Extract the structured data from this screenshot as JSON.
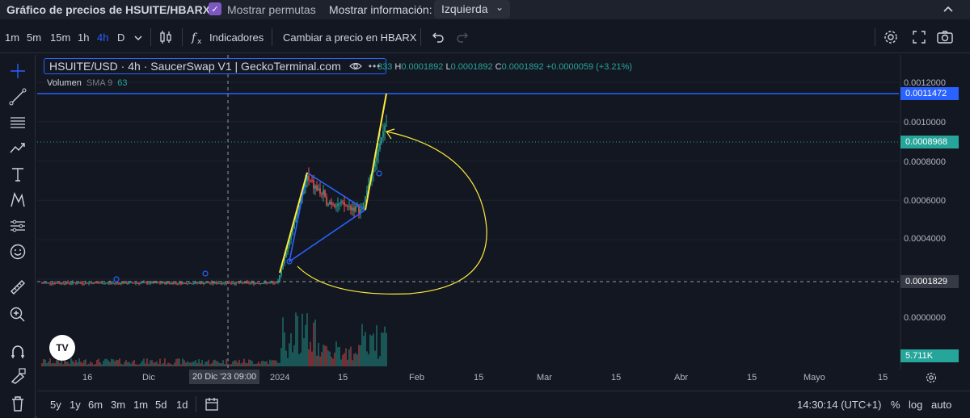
{
  "header": {
    "title": "Gráfico de precios de HSUITE/HBARX",
    "show_pairs_label": "Mostrar permutas",
    "show_pairs_checked": "✓",
    "show_info_label": "Mostrar información:",
    "show_info_value": "Izquierda",
    "collapse_icon": "chevron-up"
  },
  "toolbar": {
    "intervals": [
      "1m",
      "5m",
      "15m",
      "1h",
      "4h",
      "D"
    ],
    "active_interval": "4h",
    "indicators_label": "Indicadores",
    "convert_label": "Cambiar a precio en HBARX"
  },
  "legend": {
    "symbol": "HSUITE/USD · 4h · SaucerSwap V1 | GeckoTerminal.com",
    "ohlc_prefix": "333",
    "h_key": "H",
    "h_val": "0.0001892",
    "l_key": "L",
    "l_val": "0.0001892",
    "c_key": "C",
    "c_val": "0.0001892",
    "change": "+0.0000059 (+3.21%)",
    "volume_label": "Volumen",
    "volume_sma": "SMA 9",
    "volume_value": "63"
  },
  "price_axis": {
    "labels": [
      "0.0012000",
      "0.0010000",
      "0.0008000",
      "0.0006000",
      "0.0004000",
      "0.0000000"
    ],
    "tag_top": "0.0011472",
    "tag_current": "0.0008968",
    "tag_cross": "0.0001829",
    "tag_volume": "5.711K"
  },
  "time_axis": {
    "labels": [
      "16",
      "Dic",
      "2024",
      "15",
      "Feb",
      "15",
      "Mar",
      "15",
      "Abr",
      "15",
      "Mayo",
      "15"
    ],
    "crosshair_label": "20 Dic '23   09:00"
  },
  "bottom_bar": {
    "ranges": [
      "5y",
      "1y",
      "6m",
      "3m",
      "1m",
      "5d",
      "1d"
    ],
    "clock": "14:30:14 (UTC+1)",
    "percent_label": "%",
    "log_label": "log",
    "auto_label": "auto"
  },
  "colors": {
    "accent": "#2962ff",
    "up": "#26a69a",
    "down": "#ef5350",
    "drawing_yellow": "#ffeb3b",
    "drawing_blue": "#2962ff",
    "background": "#131722"
  }
}
